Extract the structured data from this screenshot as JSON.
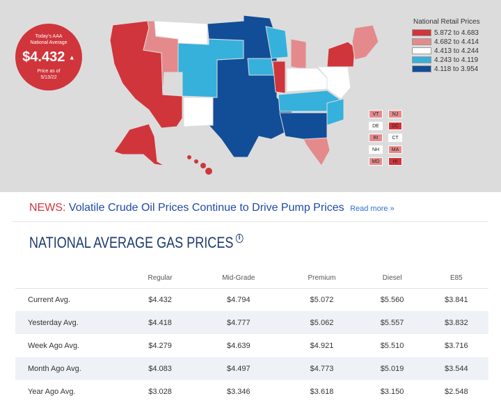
{
  "badge": {
    "line1": "Today's AAA",
    "line2": "National Average",
    "price": "$4.432",
    "trend_icon": "up-arrow-icon",
    "as_of_label": "Price as of",
    "as_of_date": "5/13/22"
  },
  "legend": {
    "title": "National Retail Prices",
    "items": [
      {
        "label": "5.872 to 4.683",
        "color": "#d0353b"
      },
      {
        "label": "4.682 to 4.414",
        "color": "#e58a8c"
      },
      {
        "label": "4.413 to 4.244",
        "color": "#ffffff"
      },
      {
        "label": "4.243 to 4.119",
        "color": "#35b1dc"
      },
      {
        "label": "4.118 to 3.954",
        "color": "#124d97"
      }
    ]
  },
  "small_states": [
    [
      {
        "code": "VT",
        "color": "#e58a8c"
      },
      {
        "code": "NJ",
        "color": "#e58a8c"
      }
    ],
    [
      {
        "code": "DE",
        "color": "#ffffff"
      },
      {
        "code": "DC",
        "color": "#d0353b"
      }
    ],
    [
      {
        "code": "RI",
        "color": "#e58a8c"
      },
      {
        "code": "CT",
        "color": "#ffffff"
      }
    ],
    [
      {
        "code": "NH",
        "color": "#ffffff"
      },
      {
        "code": "MA",
        "color": "#e58a8c"
      }
    ],
    [
      {
        "code": "MD",
        "color": "#e58a8c"
      },
      {
        "code": "HI",
        "color": "#d0353b"
      }
    ]
  ],
  "news": {
    "label": "NEWS:",
    "headline": "Volatile Crude Oil Prices Continue to Drive Pump Prices",
    "read_more": "Read more »"
  },
  "section_title": "NATIONAL AVERAGE GAS PRICES",
  "table": {
    "columns": [
      "Regular",
      "Mid-Grade",
      "Premium",
      "Diesel",
      "E85"
    ],
    "rows": [
      {
        "label": "Current Avg.",
        "values": [
          "$4.432",
          "$4.794",
          "$5.072",
          "$5.560",
          "$3.841"
        ]
      },
      {
        "label": "Yesterday Avg.",
        "values": [
          "$4.418",
          "$4.777",
          "$5.062",
          "$5.557",
          "$3.832"
        ]
      },
      {
        "label": "Week Ago Avg.",
        "values": [
          "$4.279",
          "$4.639",
          "$4.921",
          "$5.510",
          "$3.716"
        ]
      },
      {
        "label": "Month Ago Avg.",
        "values": [
          "$4.083",
          "$4.497",
          "$4.773",
          "$5.019",
          "$3.544"
        ]
      },
      {
        "label": "Year Ago Avg.",
        "values": [
          "$3.028",
          "$3.346",
          "$3.618",
          "$3.150",
          "$2.548"
        ]
      }
    ]
  }
}
